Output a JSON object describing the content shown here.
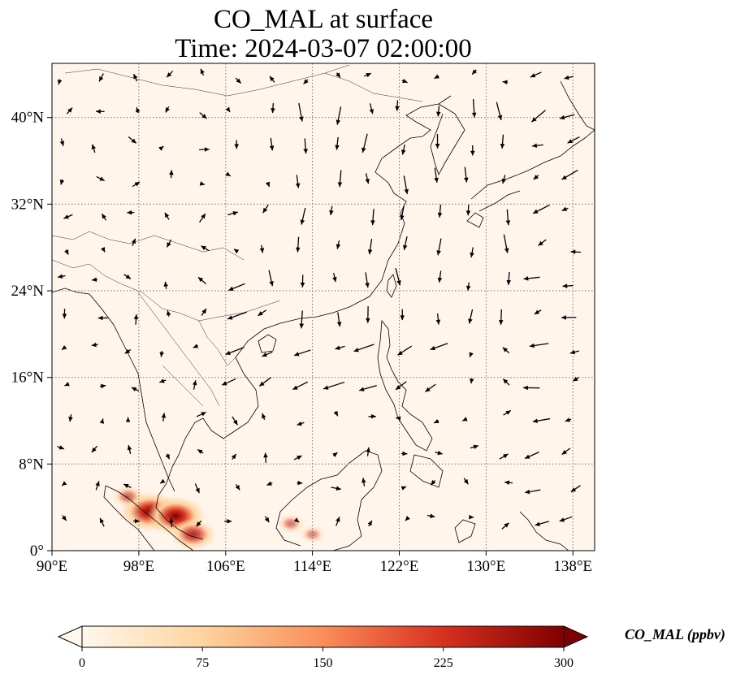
{
  "title": {
    "line1": "CO_MAL at surface",
    "line2": "Time: 2024-03-07 02:00:00"
  },
  "map": {
    "lon_range": [
      90,
      140
    ],
    "lat_range": [
      0,
      45
    ],
    "x_ticks": [
      "90°E",
      "98°E",
      "106°E",
      "114°E",
      "122°E",
      "130°E",
      "138°E"
    ],
    "y_ticks": [
      "0°",
      "8°N",
      "16°N",
      "24°N",
      "32°N",
      "40°N"
    ],
    "gridlines": true,
    "background_color": "#fff5eb",
    "hotspots": [
      {
        "lon": 99.0,
        "lat": 3.6,
        "strength": 1.0
      },
      {
        "lon": 101.4,
        "lat": 3.2,
        "strength": 1.0
      },
      {
        "lon": 103.0,
        "lat": 1.5,
        "strength": 0.7
      },
      {
        "lon": 97.0,
        "lat": 5.0,
        "strength": 0.35
      },
      {
        "lon": 112.0,
        "lat": 2.5,
        "strength": 0.25
      },
      {
        "lon": 114.0,
        "lat": 1.5,
        "strength": 0.2
      }
    ]
  },
  "colorbar": {
    "label": "CO_MAL (ppbv)",
    "ticks": [
      "0",
      "75",
      "150",
      "225",
      "300"
    ],
    "min": 0,
    "max": 300,
    "colormap": "OrRd",
    "colors": [
      "#fff7ec",
      "#fdd49e",
      "#fc8d59",
      "#d7301f",
      "#7f0000"
    ],
    "extend": "both"
  }
}
